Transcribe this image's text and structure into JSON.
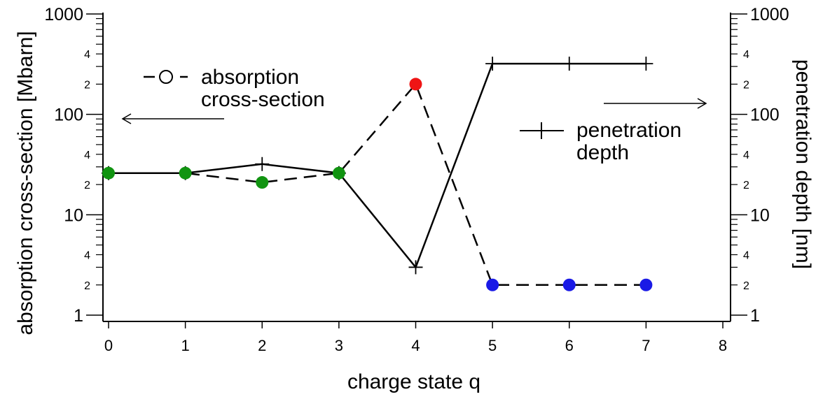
{
  "chart_data": {
    "type": "line",
    "xlabel": "charge state q",
    "ylabel_left": "absorption cross-section [Mbarn]",
    "ylabel_right": "penetration depth [nm]",
    "x_range": [
      0,
      8
    ],
    "y_range": [
      1,
      1000
    ],
    "y_scale": "log",
    "x_ticks": [
      "0",
      "1",
      "2",
      "3",
      "4",
      "5",
      "6",
      "7",
      "8"
    ],
    "y_major_ticks": [
      "1",
      "10",
      "100",
      "1000"
    ],
    "y_minor_labels": [
      "2",
      "4"
    ],
    "grid": false,
    "series": [
      {
        "name": "absorption cross-section",
        "line_style": "dashed",
        "marker": "circle",
        "axis": "left",
        "x": [
          0,
          1,
          2,
          3,
          4,
          5,
          6,
          7
        ],
        "y": [
          26,
          26,
          21,
          26,
          200,
          2,
          2,
          2
        ],
        "point_colors": [
          "#119411",
          "#119411",
          "#119411",
          "#119411",
          "#ef1515",
          "#1a1ae6",
          "#1a1ae6",
          "#1a1ae6"
        ]
      },
      {
        "name": "penetration depth",
        "line_style": "solid",
        "marker": "plus",
        "axis": "right",
        "x": [
          0,
          1,
          2,
          3,
          4,
          5,
          6,
          7
        ],
        "y": [
          26,
          26,
          32,
          26,
          3,
          320,
          320,
          320
        ]
      }
    ],
    "legend": [
      {
        "label_line1": "absorption",
        "label_line2": "cross-section",
        "placement": "upper-left"
      },
      {
        "label_line1": "penetration",
        "label_line2": "depth",
        "placement": "center-right"
      }
    ],
    "annotations": [
      "arrow pointing left toward left axis",
      "arrow pointing right toward right axis"
    ]
  }
}
